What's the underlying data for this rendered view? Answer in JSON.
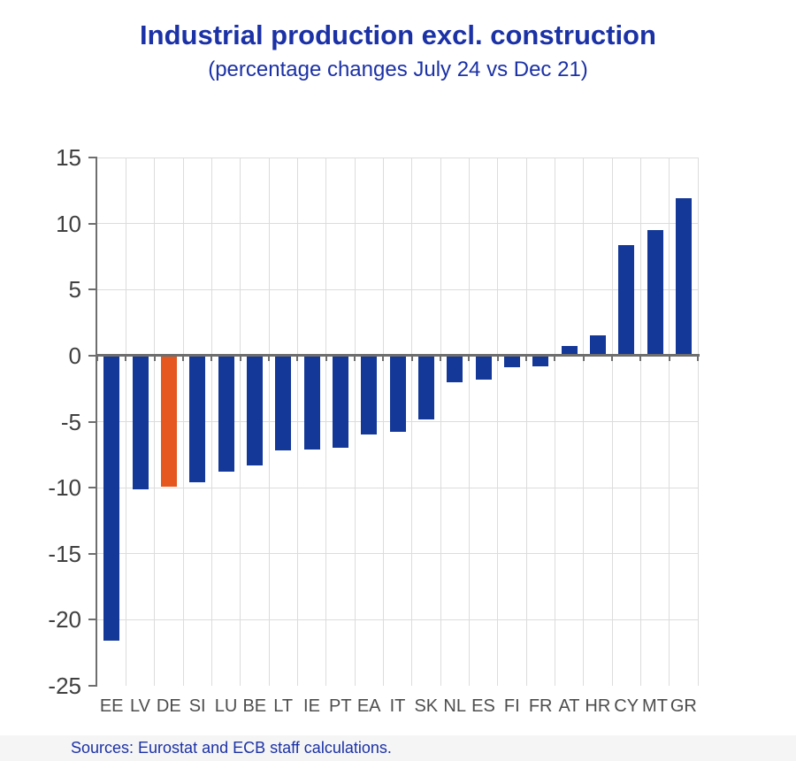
{
  "chart_data": {
    "type": "bar",
    "title": "Industrial production excl. construction",
    "subtitle": "(percentage changes July 24 vs Dec 21)",
    "categories": [
      "EE",
      "LV",
      "DE",
      "SI",
      "LU",
      "BE",
      "LT",
      "IE",
      "PT",
      "EA",
      "IT",
      "SK",
      "NL",
      "ES",
      "FI",
      "FR",
      "AT",
      "HR",
      "CY",
      "MT",
      "GR"
    ],
    "values": [
      -21.6,
      -10.1,
      -9.9,
      -9.6,
      -8.8,
      -8.3,
      -7.2,
      -7.1,
      -7.0,
      -6.0,
      -5.8,
      -4.8,
      -2.0,
      -1.8,
      -0.9,
      -0.8,
      0.7,
      1.5,
      8.4,
      9.5,
      11.9
    ],
    "highlight_category": "DE",
    "xlabel": "",
    "ylabel": "",
    "ylim": [
      -25,
      15
    ],
    "yticks": [
      15,
      10,
      5,
      0,
      -5,
      -10,
      -15,
      -20,
      -25
    ],
    "legend": "none",
    "grid": "light vertical column separators and light horizontal lines every 5 units; dark zero baseline with category tick marks; no bottom border",
    "colors": {
      "bar": "#143898",
      "highlight": "#E5571E",
      "title": "#1B31A6",
      "grid": "#DCDCDC",
      "axis": "#6E6E6E",
      "ytick_label": "#404040",
      "xtick_label": "#4D4D4D",
      "footer_bg": "#F5F5F5",
      "footer_text": "#1B31A6"
    }
  },
  "footer": {
    "sources": "Sources: Eurostat and ECB staff calculations."
  }
}
